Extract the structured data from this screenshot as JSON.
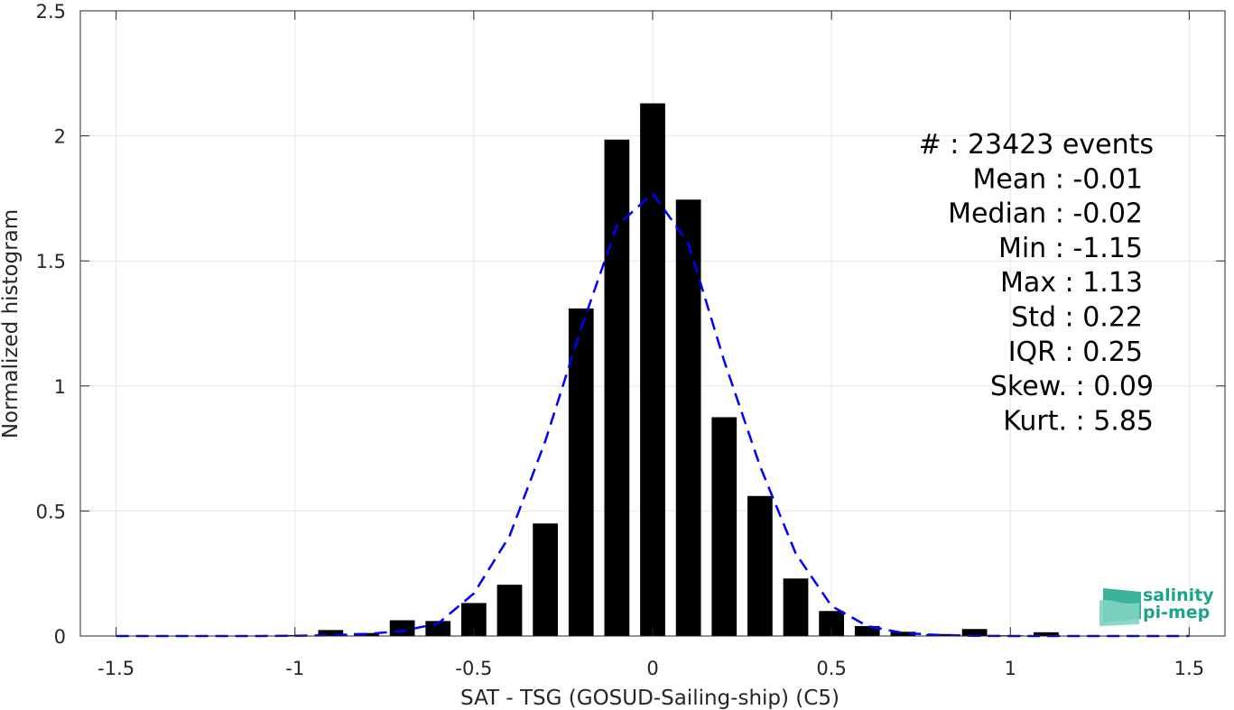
{
  "chart_data": {
    "type": "bar",
    "xlabel": "SAT - TSG (GOSUD-Sailing-ship) (C5)",
    "ylabel": "Normalized histogram",
    "xlim": [
      -1.6,
      1.6
    ],
    "ylim": [
      0,
      2.5
    ],
    "x_ticks": [
      -1.5,
      -1,
      -0.5,
      0,
      0.5,
      1,
      1.5
    ],
    "x_tick_labels": [
      "-1.5",
      "-1",
      "-0.5",
      "0",
      "0.5",
      "1",
      "1.5"
    ],
    "y_ticks": [
      0,
      0.5,
      1,
      1.5,
      2,
      2.5
    ],
    "y_tick_labels": [
      "0",
      "0.5",
      "1",
      "1.5",
      "2",
      "2.5"
    ],
    "grid": true,
    "bin_width": 0.1,
    "bars": {
      "x": [
        -1.1,
        -1.0,
        -0.9,
        -0.8,
        -0.7,
        -0.6,
        -0.5,
        -0.4,
        -0.3,
        -0.2,
        -0.1,
        0.0,
        0.1,
        0.2,
        0.3,
        0.4,
        0.5,
        0.6,
        0.7,
        0.8,
        0.9,
        1.0,
        1.1
      ],
      "values": [
        0.002,
        0.004,
        0.024,
        0.012,
        0.063,
        0.06,
        0.132,
        0.205,
        0.45,
        1.31,
        1.985,
        2.13,
        1.745,
        0.875,
        0.56,
        0.23,
        0.1,
        0.04,
        0.017,
        0.008,
        0.028,
        0.003,
        0.015
      ],
      "color": "#000000"
    },
    "fit_curve": {
      "x": [
        -1.5,
        -1.4,
        -1.3,
        -1.2,
        -1.1,
        -1.0,
        -0.9,
        -0.8,
        -0.7,
        -0.6,
        -0.5,
        -0.4,
        -0.3,
        -0.2,
        -0.1,
        0.0,
        0.1,
        0.2,
        0.3,
        0.4,
        0.5,
        0.6,
        0.7,
        0.8,
        0.9,
        1.0,
        1.1,
        1.2,
        1.3,
        1.4,
        1.5
      ],
      "y": [
        0.0,
        0.0,
        0.0,
        0.0,
        0.0,
        0.001,
        0.003,
        0.008,
        0.02,
        0.05,
        0.17,
        0.4,
        0.78,
        1.23,
        1.64,
        1.77,
        1.57,
        1.1,
        0.68,
        0.33,
        0.12,
        0.04,
        0.012,
        0.004,
        0.001,
        0.0,
        0.0,
        0.0,
        0.0,
        0.0,
        0.0
      ],
      "color": "#0000ff",
      "style": "dashed"
    },
    "stats": [
      {
        "label": "#  : 23423 events"
      },
      {
        "label": "Mean : -0.01"
      },
      {
        "label": "Median : -0.02"
      },
      {
        "label": "Min : -1.15"
      },
      {
        "label": "Max : 1.13"
      },
      {
        "label": "Std : 0.22"
      },
      {
        "label": "IQR : 0.25"
      },
      {
        "label": "Skew. : 0.09"
      },
      {
        "label": "Kurt. : 5.85"
      }
    ]
  },
  "logo": {
    "line1": "salinity",
    "line2": "pi-mep",
    "color": "#1aa58a"
  }
}
